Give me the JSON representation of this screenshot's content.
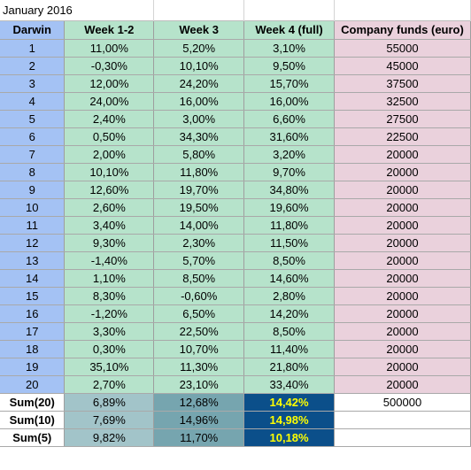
{
  "sheet": {
    "title": "January 2016",
    "headers": [
      "Darwin",
      "Week 1-2",
      "Week 3",
      "Week 4 (full)",
      "Company funds (euro)"
    ],
    "rows": [
      [
        "1",
        "11,00%",
        "5,20%",
        "3,10%",
        "55000"
      ],
      [
        "2",
        "-0,30%",
        "10,10%",
        "9,50%",
        "45000"
      ],
      [
        "3",
        "12,00%",
        "24,20%",
        "15,70%",
        "37500"
      ],
      [
        "4",
        "24,00%",
        "16,00%",
        "16,00%",
        "32500"
      ],
      [
        "5",
        "2,40%",
        "3,00%",
        "6,60%",
        "27500"
      ],
      [
        "6",
        "0,50%",
        "34,30%",
        "31,60%",
        "22500"
      ],
      [
        "7",
        "2,00%",
        "5,80%",
        "3,20%",
        "20000"
      ],
      [
        "8",
        "10,10%",
        "11,80%",
        "9,70%",
        "20000"
      ],
      [
        "9",
        "12,60%",
        "19,70%",
        "34,80%",
        "20000"
      ],
      [
        "10",
        "2,60%",
        "19,50%",
        "19,60%",
        "20000"
      ],
      [
        "11",
        "3,40%",
        "14,00%",
        "11,80%",
        "20000"
      ],
      [
        "12",
        "9,30%",
        "2,30%",
        "11,50%",
        "20000"
      ],
      [
        "13",
        "-1,40%",
        "5,70%",
        "8,50%",
        "20000"
      ],
      [
        "14",
        "1,10%",
        "8,50%",
        "14,60%",
        "20000"
      ],
      [
        "15",
        "8,30%",
        "-0,60%",
        "2,80%",
        "20000"
      ],
      [
        "16",
        "-1,20%",
        "6,50%",
        "14,20%",
        "20000"
      ],
      [
        "17",
        "3,30%",
        "22,50%",
        "8,50%",
        "20000"
      ],
      [
        "18",
        "0,30%",
        "10,70%",
        "11,40%",
        "20000"
      ],
      [
        "19",
        "35,10%",
        "11,30%",
        "21,80%",
        "20000"
      ],
      [
        "20",
        "2,70%",
        "23,10%",
        "33,40%",
        "20000"
      ]
    ],
    "sums": [
      [
        "Sum(20)",
        "6,89%",
        "12,68%",
        "14,42%",
        "500000"
      ],
      [
        "Sum(10)",
        "7,69%",
        "14,96%",
        "14,98%",
        ""
      ],
      [
        "Sum(5)",
        "9,82%",
        "11,70%",
        "10,18%",
        ""
      ]
    ],
    "colors": {
      "darwin_col": "#a4c2f4",
      "weeks_cols": "#b6e3cb",
      "funds_col": "#ead1dc",
      "sum_week12": "#a2c4c9",
      "sum_week3": "#76a5af",
      "sum_week4": "#0b4f8a",
      "sum_week4_text": "#ffff00"
    }
  }
}
